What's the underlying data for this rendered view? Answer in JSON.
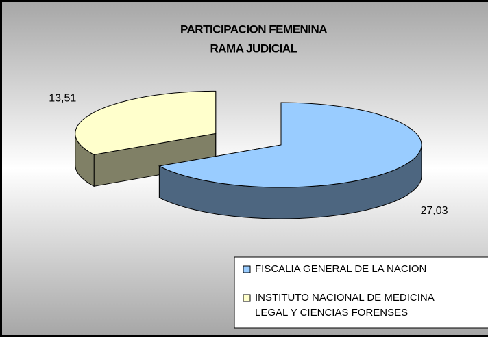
{
  "chart_data": {
    "type": "pie",
    "title": [
      "PARTICIPACION FEMENINA",
      "RAMA JUDICIAL"
    ],
    "categories": [
      "FISCALIA GENERAL DE LA NACION",
      "INSTITUTO NACIONAL DE MEDICINA LEGAL Y CIENCIAS FORENSES"
    ],
    "values": [
      27.03,
      13.51
    ],
    "value_labels": [
      "27,03",
      "13,51"
    ],
    "colors": [
      "#99ccff",
      "#ffffcc"
    ],
    "legend": "bottom-right",
    "explode": [
      false,
      true
    ]
  }
}
